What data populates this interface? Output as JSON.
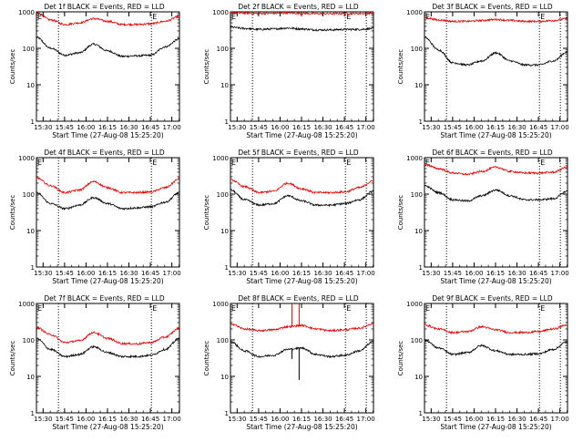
{
  "figure": {
    "xlabel": "Start Time (27-Aug-08 15:25:20)",
    "ylabel": "Counts/sec",
    "x_tick_labels": [
      "15:30",
      "15:45",
      "16:00",
      "16:15",
      "16:30",
      "16:45",
      "17:00"
    ],
    "y_tick_labels": [
      "1",
      "10",
      "100",
      "1000"
    ],
    "marker_labels": [
      "E",
      "E"
    ],
    "colors": {
      "events": "#000000",
      "lld": "#e00000",
      "axes": "#000000",
      "background": "#ffffff"
    }
  },
  "chart_data": [
    {
      "type": "line",
      "title": "Det 1f BLACK = Events, RED = LLD",
      "xlabel": "Start Time (27-Aug-08 15:25:20)",
      "ylabel": "Counts/sec",
      "y_scale": "log",
      "ylim": [
        1,
        1000
      ],
      "x_unit": "minutes after 15:25:20",
      "xlim": [
        0,
        100
      ],
      "vlines_minutes": [
        15.4,
        80.4
      ],
      "grid": false,
      "x": [
        0,
        10,
        20,
        30,
        40,
        50,
        60,
        70,
        80,
        90,
        100
      ],
      "series": [
        {
          "name": "Events",
          "values": [
            200,
            100,
            65,
            75,
            130,
            85,
            60,
            62,
            65,
            110,
            180
          ]
        },
        {
          "name": "LLD",
          "values": [
            950,
            600,
            450,
            500,
            650,
            550,
            450,
            450,
            470,
            550,
            750
          ]
        }
      ]
    },
    {
      "type": "line",
      "title": "Det 2f BLACK = Events, RED = LLD",
      "xlabel": "Start Time (27-Aug-08 15:25:20)",
      "ylabel": "Counts/sec",
      "y_scale": "log",
      "ylim": [
        1,
        1000
      ],
      "x_unit": "minutes after 15:25:20",
      "xlim": [
        0,
        100
      ],
      "vlines_minutes": [
        15.4,
        80.4,
        95
      ],
      "grid": false,
      "x": [
        0,
        10,
        20,
        30,
        40,
        50,
        60,
        70,
        80,
        90,
        100
      ],
      "series": [
        {
          "name": "Events",
          "values": [
            380,
            350,
            330,
            340,
            360,
            340,
            320,
            320,
            330,
            330,
            350
          ]
        },
        {
          "name": "LLD",
          "values": [
            950,
            920,
            900,
            910,
            930,
            910,
            890,
            890,
            900,
            900,
            920
          ]
        }
      ]
    },
    {
      "type": "line",
      "title": "Det 3f BLACK = Events, RED = LLD",
      "xlabel": "Start Time (27-Aug-08 15:25:20)",
      "ylabel": "Counts/sec",
      "y_scale": "log",
      "ylim": [
        1,
        1000
      ],
      "x_unit": "minutes after 15:25:20",
      "xlim": [
        0,
        100
      ],
      "vlines_minutes": [
        15.4,
        80.4,
        95
      ],
      "grid": false,
      "x": [
        0,
        10,
        20,
        30,
        40,
        50,
        60,
        70,
        80,
        90,
        100
      ],
      "series": [
        {
          "name": "Events",
          "values": [
            200,
            90,
            40,
            35,
            45,
            75,
            45,
            35,
            35,
            45,
            80
          ]
        },
        {
          "name": "LLD",
          "values": [
            700,
            600,
            550,
            550,
            580,
            620,
            580,
            550,
            550,
            580,
            650
          ]
        }
      ]
    },
    {
      "type": "line",
      "title": "Det 4f BLACK = Events, RED = LLD",
      "xlabel": "Start Time (27-Aug-08 15:25:20)",
      "ylabel": "Counts/sec",
      "y_scale": "log",
      "ylim": [
        1,
        1000
      ],
      "x_unit": "minutes after 15:25:20",
      "xlim": [
        0,
        100
      ],
      "vlines_minutes": [
        15.4,
        80.4
      ],
      "grid": false,
      "x": [
        0,
        10,
        20,
        30,
        40,
        50,
        60,
        70,
        80,
        90,
        100
      ],
      "series": [
        {
          "name": "Events",
          "values": [
            110,
            55,
            40,
            50,
            80,
            55,
            40,
            42,
            45,
            60,
            110
          ]
        },
        {
          "name": "LLD",
          "values": [
            280,
            170,
            110,
            130,
            220,
            150,
            110,
            110,
            115,
            150,
            260
          ]
        }
      ]
    },
    {
      "type": "line",
      "title": "Det 5f BLACK = Events, RED = LLD",
      "xlabel": "Start Time (27-Aug-08 15:25:20)",
      "ylabel": "Counts/sec",
      "y_scale": "log",
      "ylim": [
        1,
        1000
      ],
      "x_unit": "minutes after 15:25:20",
      "xlim": [
        0,
        100
      ],
      "vlines_minutes": [
        15.4,
        80.4,
        95
      ],
      "grid": false,
      "x": [
        0,
        10,
        20,
        30,
        40,
        50,
        60,
        70,
        80,
        90,
        100
      ],
      "series": [
        {
          "name": "Events",
          "values": [
            130,
            70,
            50,
            55,
            90,
            65,
            50,
            50,
            55,
            70,
            120
          ]
        },
        {
          "name": "LLD",
          "values": [
            250,
            160,
            110,
            120,
            200,
            140,
            110,
            110,
            115,
            150,
            230
          ]
        }
      ]
    },
    {
      "type": "line",
      "title": "Det 6f BLACK = Events, RED = LLD",
      "xlabel": "Start Time (27-Aug-08 15:25:20)",
      "ylabel": "Counts/sec",
      "y_scale": "log",
      "ylim": [
        1,
        1000
      ],
      "x_unit": "minutes after 15:25:20",
      "xlim": [
        0,
        100
      ],
      "vlines_minutes": [
        15.4,
        80.4,
        95
      ],
      "grid": false,
      "x": [
        0,
        10,
        20,
        30,
        40,
        50,
        60,
        70,
        80,
        90,
        100
      ],
      "series": [
        {
          "name": "Events",
          "values": [
            170,
            110,
            70,
            65,
            90,
            130,
            90,
            70,
            70,
            75,
            120
          ]
        },
        {
          "name": "LLD",
          "values": [
            650,
            500,
            380,
            350,
            420,
            550,
            420,
            380,
            380,
            400,
            550
          ]
        }
      ]
    },
    {
      "type": "line",
      "title": "Det 7f BLACK = Events, RED = LLD",
      "xlabel": "Start Time (27-Aug-08 15:25:20)",
      "ylabel": "Counts/sec",
      "y_scale": "log",
      "ylim": [
        1,
        1000
      ],
      "x_unit": "minutes after 15:25:20",
      "xlim": [
        0,
        100
      ],
      "vlines_minutes": [
        15.4,
        80.4
      ],
      "grid": false,
      "x": [
        0,
        10,
        20,
        30,
        40,
        50,
        60,
        70,
        80,
        90,
        100
      ],
      "series": [
        {
          "name": "Events",
          "values": [
            110,
            55,
            35,
            40,
            65,
            45,
            35,
            35,
            38,
            55,
            110
          ]
        },
        {
          "name": "LLD",
          "values": [
            220,
            140,
            85,
            95,
            160,
            110,
            80,
            78,
            85,
            120,
            210
          ]
        }
      ]
    },
    {
      "type": "line",
      "title": "Det 8f BLACK = Events, RED = LLD",
      "xlabel": "Start Time (27-Aug-08 15:25:20)",
      "ylabel": "Counts/sec",
      "y_scale": "log",
      "ylim": [
        1,
        1000
      ],
      "x_unit": "minutes after 15:25:20",
      "xlim": [
        0,
        100
      ],
      "vlines_minutes": [
        15.4,
        80.4,
        95
      ],
      "grid": false,
      "spike_minutes": 45,
      "x": [
        0,
        10,
        20,
        30,
        40,
        50,
        60,
        70,
        80,
        90,
        100
      ],
      "series": [
        {
          "name": "Events",
          "values": [
            90,
            50,
            35,
            38,
            55,
            60,
            40,
            35,
            38,
            50,
            90
          ]
        },
        {
          "name": "LLD",
          "values": [
            280,
            200,
            180,
            190,
            230,
            250,
            200,
            180,
            190,
            210,
            280
          ]
        }
      ]
    },
    {
      "type": "line",
      "title": "Det 9f BLACK = Events, RED = LLD",
      "xlabel": "Start Time (27-Aug-08 15:25:20)",
      "ylabel": "Counts/sec",
      "y_scale": "log",
      "ylim": [
        1,
        1000
      ],
      "x_unit": "minutes after 15:25:20",
      "xlim": [
        0,
        100
      ],
      "vlines_minutes": [
        15.4,
        80.4,
        95
      ],
      "grid": false,
      "x": [
        0,
        10,
        20,
        30,
        40,
        50,
        60,
        70,
        80,
        90,
        100
      ],
      "series": [
        {
          "name": "Events",
          "values": [
            100,
            60,
            40,
            45,
            70,
            50,
            40,
            40,
            42,
            55,
            90
          ]
        },
        {
          "name": "LLD",
          "values": [
            260,
            200,
            160,
            170,
            230,
            190,
            160,
            160,
            170,
            200,
            260
          ]
        }
      ]
    }
  ]
}
